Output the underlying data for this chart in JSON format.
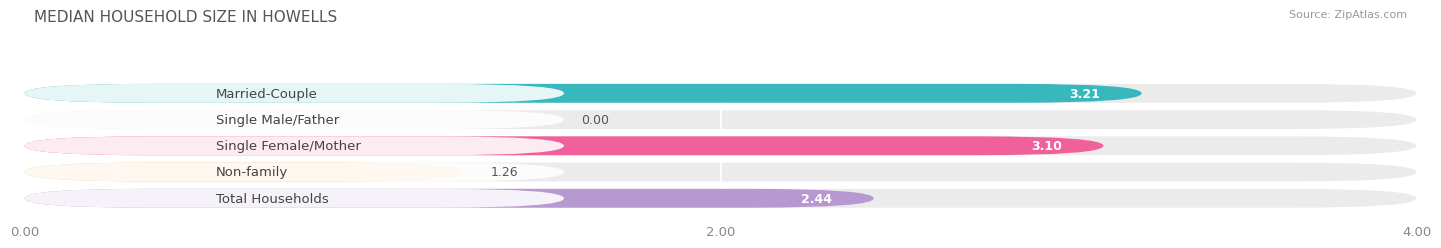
{
  "title": "MEDIAN HOUSEHOLD SIZE IN HOWELLS",
  "source": "Source: ZipAtlas.com",
  "categories": [
    "Married-Couple",
    "Single Male/Father",
    "Single Female/Mother",
    "Non-family",
    "Total Households"
  ],
  "values": [
    3.21,
    0.0,
    3.1,
    1.26,
    2.44
  ],
  "bar_colors": [
    "#38b8bc",
    "#a8b8e8",
    "#f0609a",
    "#f8c888",
    "#b898d0"
  ],
  "background_color": "#ffffff",
  "bar_bg_color": "#ebebeb",
  "xlim": [
    0,
    4.0
  ],
  "xticks": [
    0.0,
    2.0,
    4.0
  ],
  "xtick_labels": [
    "0.00",
    "2.00",
    "4.00"
  ],
  "title_fontsize": 11,
  "label_fontsize": 9.5,
  "value_fontsize": 9,
  "source_fontsize": 8,
  "bar_height": 0.72,
  "bar_gap": 0.28
}
